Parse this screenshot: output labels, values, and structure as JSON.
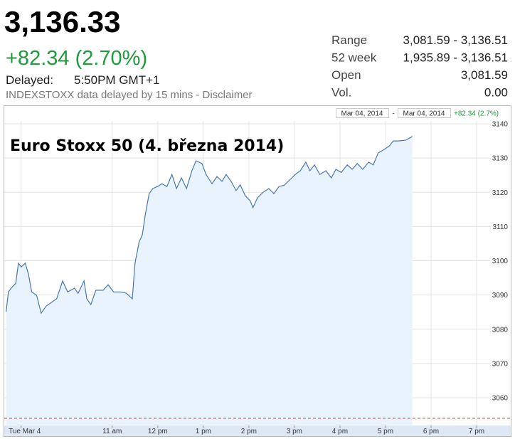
{
  "header": {
    "price": "3,136.33",
    "change": "+82.34 (2.70%)",
    "delayed_label": "Delayed:",
    "delayed_time": "5:50PM GMT+1",
    "disclaimer": "INDEXSTOXX data delayed by 15 mins - Disclaimer"
  },
  "stats": [
    {
      "label": "Range",
      "value": "3,081.59 - 3,136.51"
    },
    {
      "label": "52 week",
      "value": "1,935.89 - 3,136.51"
    },
    {
      "label": "Open",
      "value": "3,081.59"
    },
    {
      "label": "Vol.",
      "value": "0.00"
    }
  ],
  "chart_data": {
    "type": "area",
    "title": "Euro Stoxx 50 (4. března 2014)",
    "range_start": "Mar 04, 2014",
    "range_separator": "-",
    "range_end": "Mar 04, 2014",
    "range_change": "+82.34 (2.7%)",
    "line_color": "#4a78ac",
    "fill_color": "#e9f3fd",
    "grid": true,
    "prev_close": 3054,
    "x": [
      8.67,
      8.72,
      8.78,
      8.88,
      8.94,
      9.0,
      9.09,
      9.16,
      9.23,
      9.34,
      9.44,
      9.55,
      9.66,
      9.78,
      9.91,
      10.02,
      10.17,
      10.25,
      10.38,
      10.44,
      10.53,
      10.64,
      10.8,
      10.91,
      11.03,
      11.19,
      11.31,
      11.44,
      11.5,
      11.59,
      11.66,
      11.73,
      11.81,
      11.89,
      12.0,
      12.09,
      12.2,
      12.31,
      12.41,
      12.52,
      12.63,
      12.75,
      12.84,
      12.97,
      13.06,
      13.19,
      13.3,
      13.41,
      13.5,
      13.61,
      13.72,
      13.81,
      13.92,
      14.03,
      14.09,
      14.19,
      14.31,
      14.44,
      14.55,
      14.66,
      14.78,
      14.91,
      15.02,
      15.13,
      15.25,
      15.34,
      15.44,
      15.56,
      15.69,
      15.81,
      15.91,
      16.03,
      16.16,
      16.27,
      16.38,
      16.5,
      16.63,
      16.73,
      16.84,
      16.97,
      17.09,
      17.17,
      17.28,
      17.44,
      17.59
    ],
    "values": [
      3085.1,
      3090.9,
      3092.0,
      3093.4,
      3099.3,
      3098.2,
      3099.3,
      3096.1,
      3090.9,
      3089.9,
      3084.7,
      3086.8,
      3087.8,
      3088.9,
      3094.1,
      3090.9,
      3092.0,
      3090.5,
      3094.1,
      3088.9,
      3087.2,
      3091.4,
      3091.4,
      3093.0,
      3090.9,
      3090.9,
      3090.5,
      3088.9,
      3099.3,
      3105.5,
      3107.6,
      3113.8,
      3119.6,
      3121.1,
      3121.7,
      3122.5,
      3121.7,
      3125.2,
      3121.1,
      3124.2,
      3121.1,
      3126.3,
      3129.2,
      3128.4,
      3125.2,
      3122.5,
      3124.6,
      3123.2,
      3125.2,
      3123.2,
      3120.5,
      3122.2,
      3119.0,
      3117.5,
      3115.5,
      3118.4,
      3120.0,
      3121.1,
      3119.6,
      3121.7,
      3122.1,
      3123.8,
      3125.2,
      3126.3,
      3128.8,
      3126.3,
      3128.0,
      3125.2,
      3126.3,
      3124.2,
      3126.7,
      3125.8,
      3128.0,
      3126.7,
      3128.4,
      3126.7,
      3128.8,
      3128.0,
      3131.5,
      3132.5,
      3133.6,
      3135.0,
      3135.0,
      3135.2,
      3136.3
    ],
    "xlim": [
      8.66,
      19.75
    ],
    "ylim": [
      3052,
      3141
    ],
    "yticks": [
      3060,
      3070,
      3080,
      3090,
      3100,
      3110,
      3120,
      3130,
      3140
    ],
    "xticks": [
      {
        "value": 9,
        "label": "Tue Mar 4"
      },
      {
        "value": 11,
        "label": "11 am"
      },
      {
        "value": 12,
        "label": "12 pm"
      },
      {
        "value": 13,
        "label": "1 pm"
      },
      {
        "value": 14,
        "label": "2 pm"
      },
      {
        "value": 15,
        "label": "3 pm"
      },
      {
        "value": 16,
        "label": "4 pm"
      },
      {
        "value": 17,
        "label": "5 pm"
      },
      {
        "value": 18,
        "label": "6 pm"
      },
      {
        "value": 19,
        "label": "7 pm"
      }
    ]
  }
}
